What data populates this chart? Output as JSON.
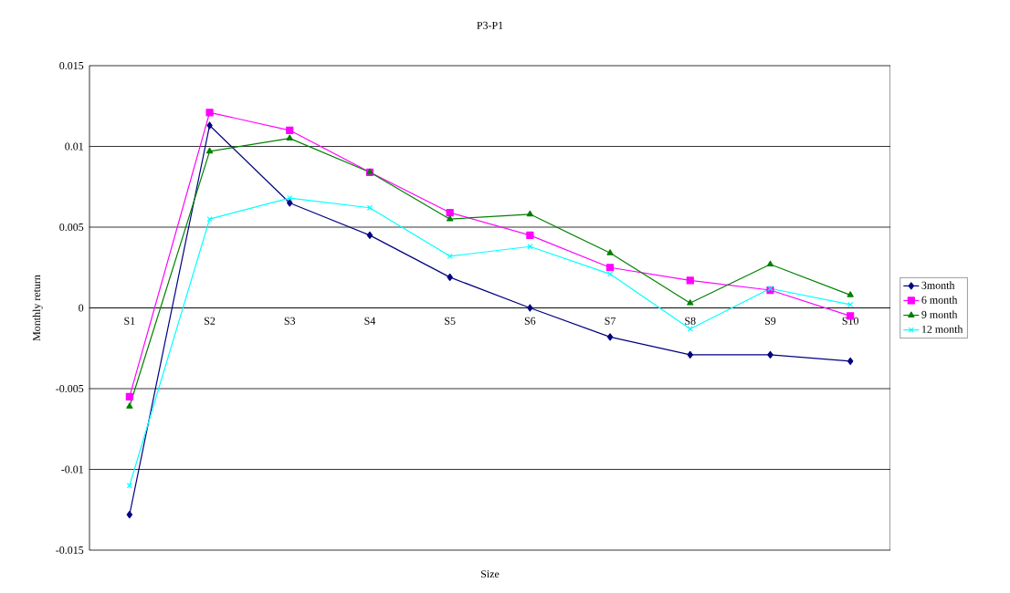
{
  "chart_data": {
    "type": "line",
    "title": "P3-P1",
    "xlabel": "Size",
    "ylabel": "Monthly return",
    "categories": [
      "S1",
      "S2",
      "S3",
      "S4",
      "S5",
      "S6",
      "S7",
      "S8",
      "S9",
      "S10"
    ],
    "series": [
      {
        "name": "3month",
        "color": "#000080",
        "marker": "diamond",
        "values": [
          -0.0128,
          0.0113,
          0.0065,
          0.0045,
          0.0019,
          0.0,
          -0.0018,
          -0.0029,
          -0.0029,
          -0.0033
        ]
      },
      {
        "name": "6 month",
        "color": "#ff00ff",
        "marker": "square",
        "values": [
          -0.0055,
          0.0121,
          0.011,
          0.0084,
          0.0059,
          0.0045,
          0.0025,
          0.0017,
          0.0011,
          -0.0005
        ]
      },
      {
        "name": "9 month",
        "color": "#008000",
        "marker": "triangle",
        "values": [
          -0.0061,
          0.0097,
          0.0105,
          0.0084,
          0.0055,
          0.0058,
          0.0034,
          0.0003,
          0.0027,
          0.0008
        ]
      },
      {
        "name": "12 month",
        "color": "#00ffff",
        "marker": "cross",
        "values": [
          -0.011,
          0.0055,
          0.0068,
          0.0062,
          0.0032,
          0.0038,
          0.0021,
          -0.0013,
          0.0012,
          0.0002
        ]
      }
    ],
    "ylim": [
      -0.015,
      0.015
    ],
    "yticks": [
      -0.015,
      -0.01,
      -0.005,
      0,
      0.005,
      0.01,
      0.015
    ],
    "grid": "y",
    "legend": "right",
    "line_style": "solid"
  }
}
